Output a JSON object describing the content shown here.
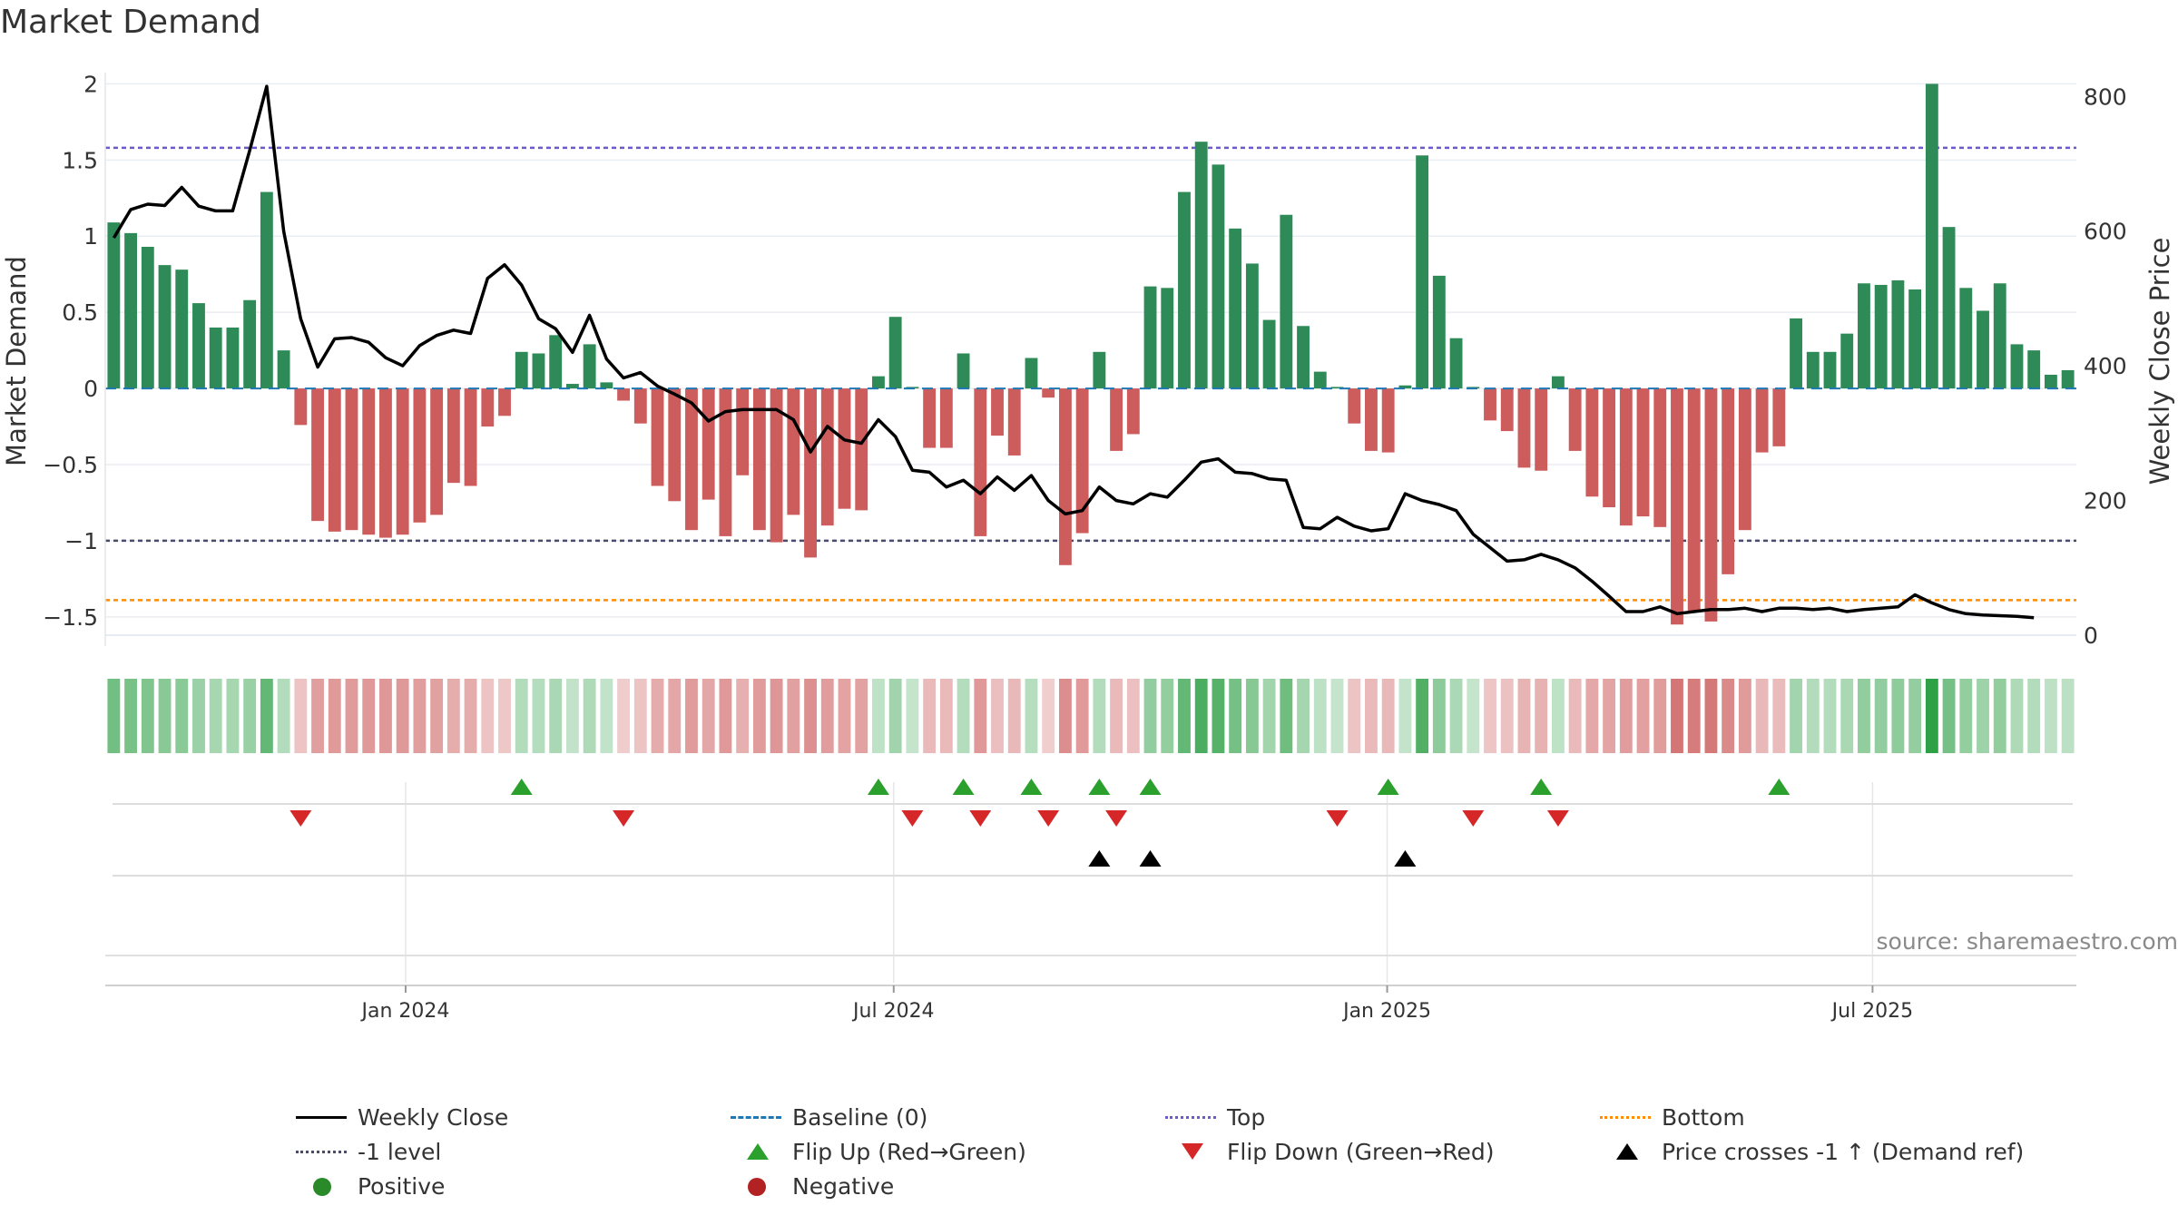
{
  "title": "Market Demand",
  "source": "source: sharemaestro.com",
  "colors": {
    "positive_bar": "#2e8b57",
    "negative_bar": "#cd5c5c",
    "close_line": "#000000",
    "baseline": "#1f77b4",
    "top_line": "#6a5acd",
    "minus1_line": "#4a4a6a",
    "bottom_line": "#ff8c00",
    "flip_up": "#2ca02c",
    "flip_down": "#d62728",
    "cross_marker": "#000000"
  },
  "chart_data": {
    "type": "bar",
    "title": "Market Demand",
    "ylabel": "Market Demand",
    "y2label": "Weekly Close Price",
    "ylim": [
      -1.62,
      2.05
    ],
    "y2lim": [
      0,
      830
    ],
    "yticks": [
      2,
      1.5,
      1,
      0.5,
      0,
      -0.5,
      -1,
      -1.5
    ],
    "y2ticks": [
      800,
      600,
      400,
      200,
      0
    ],
    "x_start": "2023-09-11",
    "x_end": "2025-09-15",
    "xticks": [
      {
        "date": "2024-01-01",
        "label": "Jan 2024"
      },
      {
        "date": "2024-07-01",
        "label": "Jul 2024"
      },
      {
        "date": "2025-01-01",
        "label": "Jan 2025"
      },
      {
        "date": "2025-07-01",
        "label": "Jul 2025"
      }
    ],
    "reference_lines": {
      "top": 1.58,
      "minus1": -1.0,
      "bottom": -1.39,
      "baseline": 0
    },
    "demand": [
      1.09,
      1.02,
      0.93,
      0.81,
      0.78,
      0.56,
      0.4,
      0.4,
      0.58,
      1.29,
      0.25,
      -0.24,
      -0.87,
      -0.94,
      -0.93,
      -0.96,
      -0.98,
      -0.96,
      -0.88,
      -0.83,
      -0.62,
      -0.64,
      -0.25,
      -0.18,
      0.24,
      0.23,
      0.35,
      0.03,
      0.29,
      0.04,
      -0.08,
      -0.23,
      -0.64,
      -0.74,
      -0.93,
      -0.73,
      -0.97,
      -0.57,
      -0.93,
      -1.01,
      -0.83,
      -1.11,
      -0.9,
      -0.79,
      -0.8,
      0.08,
      0.47,
      0.01,
      -0.39,
      -0.39,
      0.23,
      -0.97,
      -0.31,
      -0.44,
      0.2,
      -0.06,
      -1.16,
      -0.95,
      0.24,
      -0.41,
      -0.3,
      0.67,
      0.66,
      1.29,
      1.62,
      1.47,
      1.05,
      0.82,
      0.45,
      1.14,
      0.41,
      0.11,
      0.01,
      -0.23,
      -0.41,
      -0.42,
      0.02,
      1.53,
      0.74,
      0.33,
      0.01,
      -0.21,
      -0.28,
      -0.52,
      -0.54,
      0.08,
      -0.41,
      -0.71,
      -0.78,
      -0.9,
      -0.84,
      -0.91,
      -1.55,
      -1.46,
      -1.53,
      -1.22,
      -0.93,
      -0.42,
      -0.38,
      0.46,
      0.24,
      0.24,
      0.36,
      0.69,
      0.68,
      0.71,
      0.65,
      2.0,
      1.06,
      0.66,
      0.51,
      0.69,
      0.29,
      0.25,
      0.09,
      0.12
    ],
    "close": [
      590,
      632,
      640,
      638,
      665,
      637,
      630,
      630,
      720,
      815,
      600,
      470,
      398,
      440,
      442,
      435,
      412,
      400,
      430,
      445,
      453,
      448,
      530,
      550,
      520,
      470,
      455,
      420,
      475,
      410,
      382,
      390,
      370,
      358,
      345,
      318,
      332,
      335,
      335,
      335,
      320,
      272,
      310,
      290,
      285,
      320,
      295,
      245,
      242,
      220,
      230,
      210,
      235,
      215,
      237,
      200,
      180,
      185,
      220,
      200,
      195,
      210,
      205,
      230,
      257,
      262,
      242,
      240,
      232,
      230,
      160,
      158,
      175,
      162,
      155,
      158,
      210,
      200,
      194,
      185,
      150,
      130,
      110,
      112,
      120,
      112,
      100,
      80,
      58,
      35,
      35,
      42,
      32,
      35,
      38,
      38,
      40,
      35,
      40,
      40,
      38,
      40,
      35,
      38,
      40,
      42,
      60,
      48,
      38,
      32,
      30,
      29,
      28,
      26
    ],
    "flip_up_weeks": [
      24,
      45,
      50,
      54,
      58,
      61,
      75,
      84,
      98
    ],
    "flip_down_weeks": [
      11,
      30,
      47,
      51,
      55,
      59,
      72,
      80,
      85
    ],
    "cross_weeks": [
      58,
      61,
      76
    ]
  },
  "legend": [
    {
      "key": "close",
      "label": "Weekly Close",
      "icon": "solid-line"
    },
    {
      "key": "baseline",
      "label": "Baseline (0)",
      "icon": "dashed-line"
    },
    {
      "key": "top",
      "label": "Top",
      "icon": "dotted-line"
    },
    {
      "key": "bottom",
      "label": "Bottom",
      "icon": "dotted-line"
    },
    {
      "key": "minus1",
      "label": "-1 level",
      "icon": "dotted-line"
    },
    {
      "key": "flip_up",
      "label": "Flip Up (Red→Green)",
      "icon": "triangle-up"
    },
    {
      "key": "flip_down",
      "label": "Flip Down (Green→Red)",
      "icon": "triangle-down"
    },
    {
      "key": "cross",
      "label": "Price crosses -1 ↑ (Demand ref)",
      "icon": "triangle-up"
    },
    {
      "key": "positive",
      "label": "Positive",
      "icon": "circle"
    },
    {
      "key": "negative",
      "label": "Negative",
      "icon": "circle"
    }
  ],
  "legend_colors": {
    "close": "#000000",
    "baseline": "#1f77b4",
    "top": "#6a5acd",
    "bottom": "#ff8c00",
    "minus1": "#4a4a6a",
    "flip_up": "#2ca02c",
    "flip_down": "#d62728",
    "cross": "#000000",
    "positive": "#2a8a2a",
    "negative": "#b22222"
  }
}
